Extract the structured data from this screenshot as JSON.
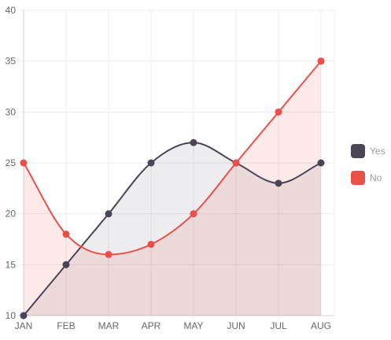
{
  "chart_data": {
    "type": "area",
    "categories": [
      "JAN",
      "FEB",
      "MAR",
      "APR",
      "MAY",
      "JUN",
      "JUL",
      "AUG"
    ],
    "ylim": [
      10,
      40
    ],
    "yticks": [
      10,
      15,
      20,
      25,
      30,
      35,
      40
    ],
    "grid": true,
    "legend_position": "right",
    "series": [
      {
        "name": "Yes",
        "values": [
          10,
          15,
          20,
          25,
          27,
          25,
          23,
          25
        ],
        "color": "#4b4457",
        "fill": "rgba(75,68,87,0.10)"
      },
      {
        "name": "No",
        "values": [
          25,
          18,
          16,
          17,
          20,
          25,
          30,
          35
        ],
        "color": "#ea4f4a",
        "fill": "rgba(234,79,74,0.12)"
      }
    ]
  }
}
